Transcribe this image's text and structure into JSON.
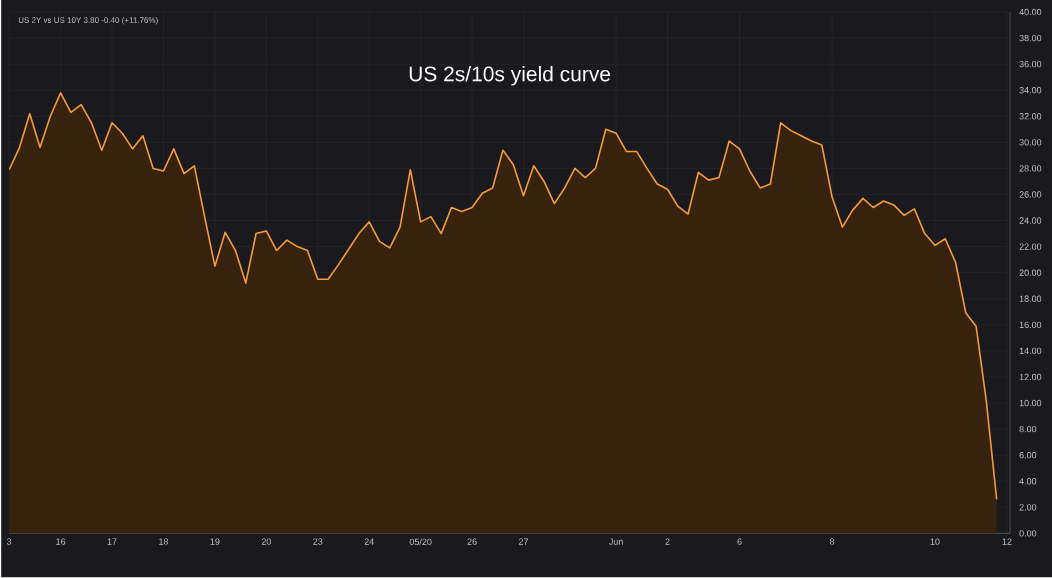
{
  "chart_data": {
    "type": "area",
    "title": "US 2s/10s yield curve",
    "annotations": [
      "US 2Y vs US 10Y 3.80 -0.40 (+11.76%)"
    ],
    "color": "#f59b3a",
    "grid": true,
    "categories": [
      "3",
      null,
      null,
      null,
      null,
      "16",
      null,
      null,
      null,
      null,
      "17",
      null,
      null,
      null,
      null,
      "18",
      null,
      null,
      null,
      null,
      "19",
      null,
      null,
      null,
      null,
      "20",
      null,
      null,
      null,
      null,
      "23",
      null,
      null,
      null,
      null,
      "24",
      null,
      null,
      null,
      null,
      "05/20",
      null,
      null,
      null,
      null,
      "26",
      null,
      null,
      null,
      null,
      "27",
      null,
      null,
      null,
      null,
      null,
      null,
      null,
      null,
      "Jun",
      null,
      null,
      null,
      null,
      "2",
      null,
      null,
      null,
      null,
      null,
      null,
      "6",
      null,
      null,
      null,
      null,
      null,
      null,
      null,
      null,
      "8",
      null,
      null,
      null,
      null,
      null,
      null,
      null,
      null,
      null,
      "10",
      null,
      null,
      null,
      null,
      null,
      null,
      "12"
    ],
    "values": [
      27.9,
      29.6,
      32.2,
      29.6,
      32.0,
      33.8,
      32.3,
      32.9,
      31.5,
      29.4,
      31.5,
      30.7,
      29.5,
      30.5,
      28.0,
      27.8,
      29.5,
      27.6,
      28.2,
      24.3,
      20.5,
      23.1,
      21.7,
      19.2,
      23.0,
      23.2,
      21.7,
      22.5,
      22.0,
      21.7,
      19.5,
      19.5,
      20.6,
      21.8,
      23.0,
      23.9,
      22.4,
      21.9,
      23.5,
      27.9,
      23.9,
      24.3,
      23.0,
      25.0,
      24.7,
      25.0,
      26.1,
      26.5,
      29.4,
      28.3,
      25.9,
      28.2,
      27.0,
      25.3,
      26.5,
      28.0,
      27.3,
      28.0,
      31.0,
      30.7,
      29.3,
      29.3,
      28.0,
      26.8,
      26.4,
      25.1,
      24.5,
      27.7,
      27.1,
      27.3,
      30.1,
      29.5,
      27.8,
      26.5,
      26.8,
      31.5,
      30.9,
      30.5,
      30.1,
      29.8,
      25.8,
      23.5,
      24.8,
      25.7,
      25.0,
      25.5,
      25.2,
      24.4,
      24.9,
      23.0,
      22.1,
      22.6,
      20.8,
      16.9,
      15.9,
      10.1,
      2.6,
      null
    ],
    "ylim": [
      0,
      40
    ],
    "yticks": [
      {
        "value": 0,
        "label": "0.00"
      },
      {
        "value": 2,
        "label": "2.00"
      },
      {
        "value": 4,
        "label": "4.00"
      },
      {
        "value": 6,
        "label": "6.00"
      },
      {
        "value": 8,
        "label": "8.00"
      },
      {
        "value": 10,
        "label": "10.00"
      },
      {
        "value": 12,
        "label": "12.00"
      },
      {
        "value": 14,
        "label": "14.00"
      },
      {
        "value": 16,
        "label": "16.00"
      },
      {
        "value": 18,
        "label": "18.00"
      },
      {
        "value": 20,
        "label": "20.00"
      },
      {
        "value": 22,
        "label": "22.00"
      },
      {
        "value": 24,
        "label": "24.00"
      },
      {
        "value": 26,
        "label": "26.00"
      },
      {
        "value": 28,
        "label": "28.00"
      },
      {
        "value": 30,
        "label": "30.00"
      },
      {
        "value": 32,
        "label": "32.00"
      },
      {
        "value": 34,
        "label": "34.00"
      },
      {
        "value": 36,
        "label": "36.00"
      },
      {
        "value": 38,
        "label": "38.00"
      },
      {
        "value": 40,
        "label": "40.00"
      }
    ]
  }
}
